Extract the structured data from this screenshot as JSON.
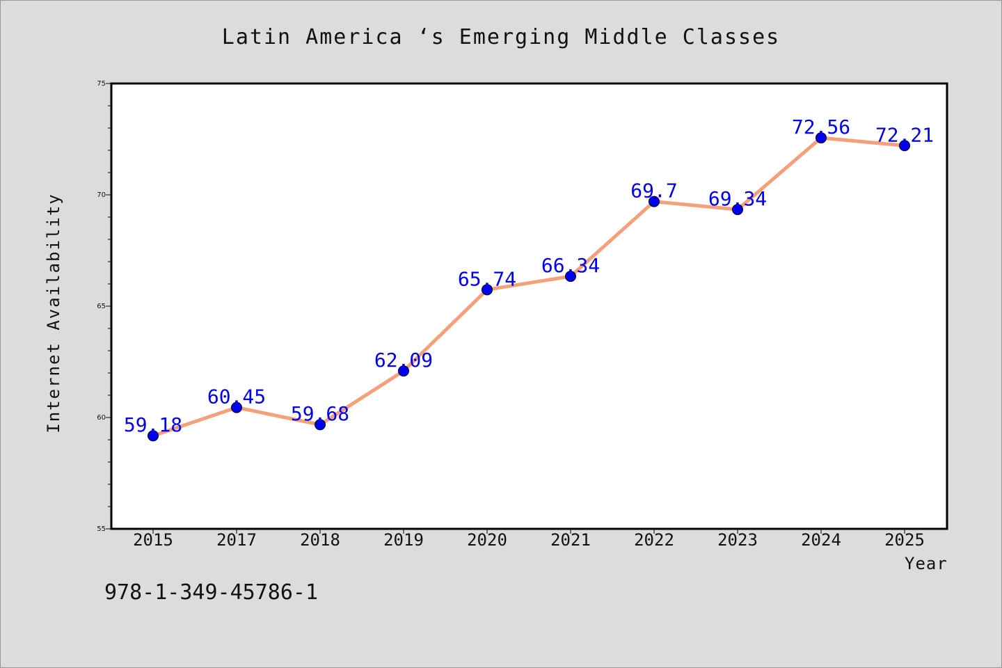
{
  "chart_data": {
    "type": "line",
    "title": "Latin America ‘s Emerging Middle Classes",
    "xlabel": "Year",
    "ylabel": "Internet Availability",
    "categories": [
      "2015",
      "2017",
      "2018",
      "2019",
      "2020",
      "2021",
      "2022",
      "2023",
      "2024",
      "2025"
    ],
    "values": [
      59.18,
      60.45,
      59.68,
      62.09,
      65.74,
      66.34,
      69.7,
      69.34,
      72.56,
      72.21
    ],
    "data_labels": [
      "59.18",
      "60.45",
      "59.68",
      "62.09",
      "65.74",
      "66.34",
      "69.7",
      "69.34",
      "72.56",
      "72.21"
    ],
    "ylim": [
      55,
      75
    ],
    "y_ticks": [
      "55",
      "60",
      "65",
      "70",
      "75"
    ],
    "grid": false,
    "line_color": "#f4a07a",
    "marker_color": "#0000ee",
    "label_color": "#0000ee"
  },
  "footnote": "978-1-349-45786-1"
}
